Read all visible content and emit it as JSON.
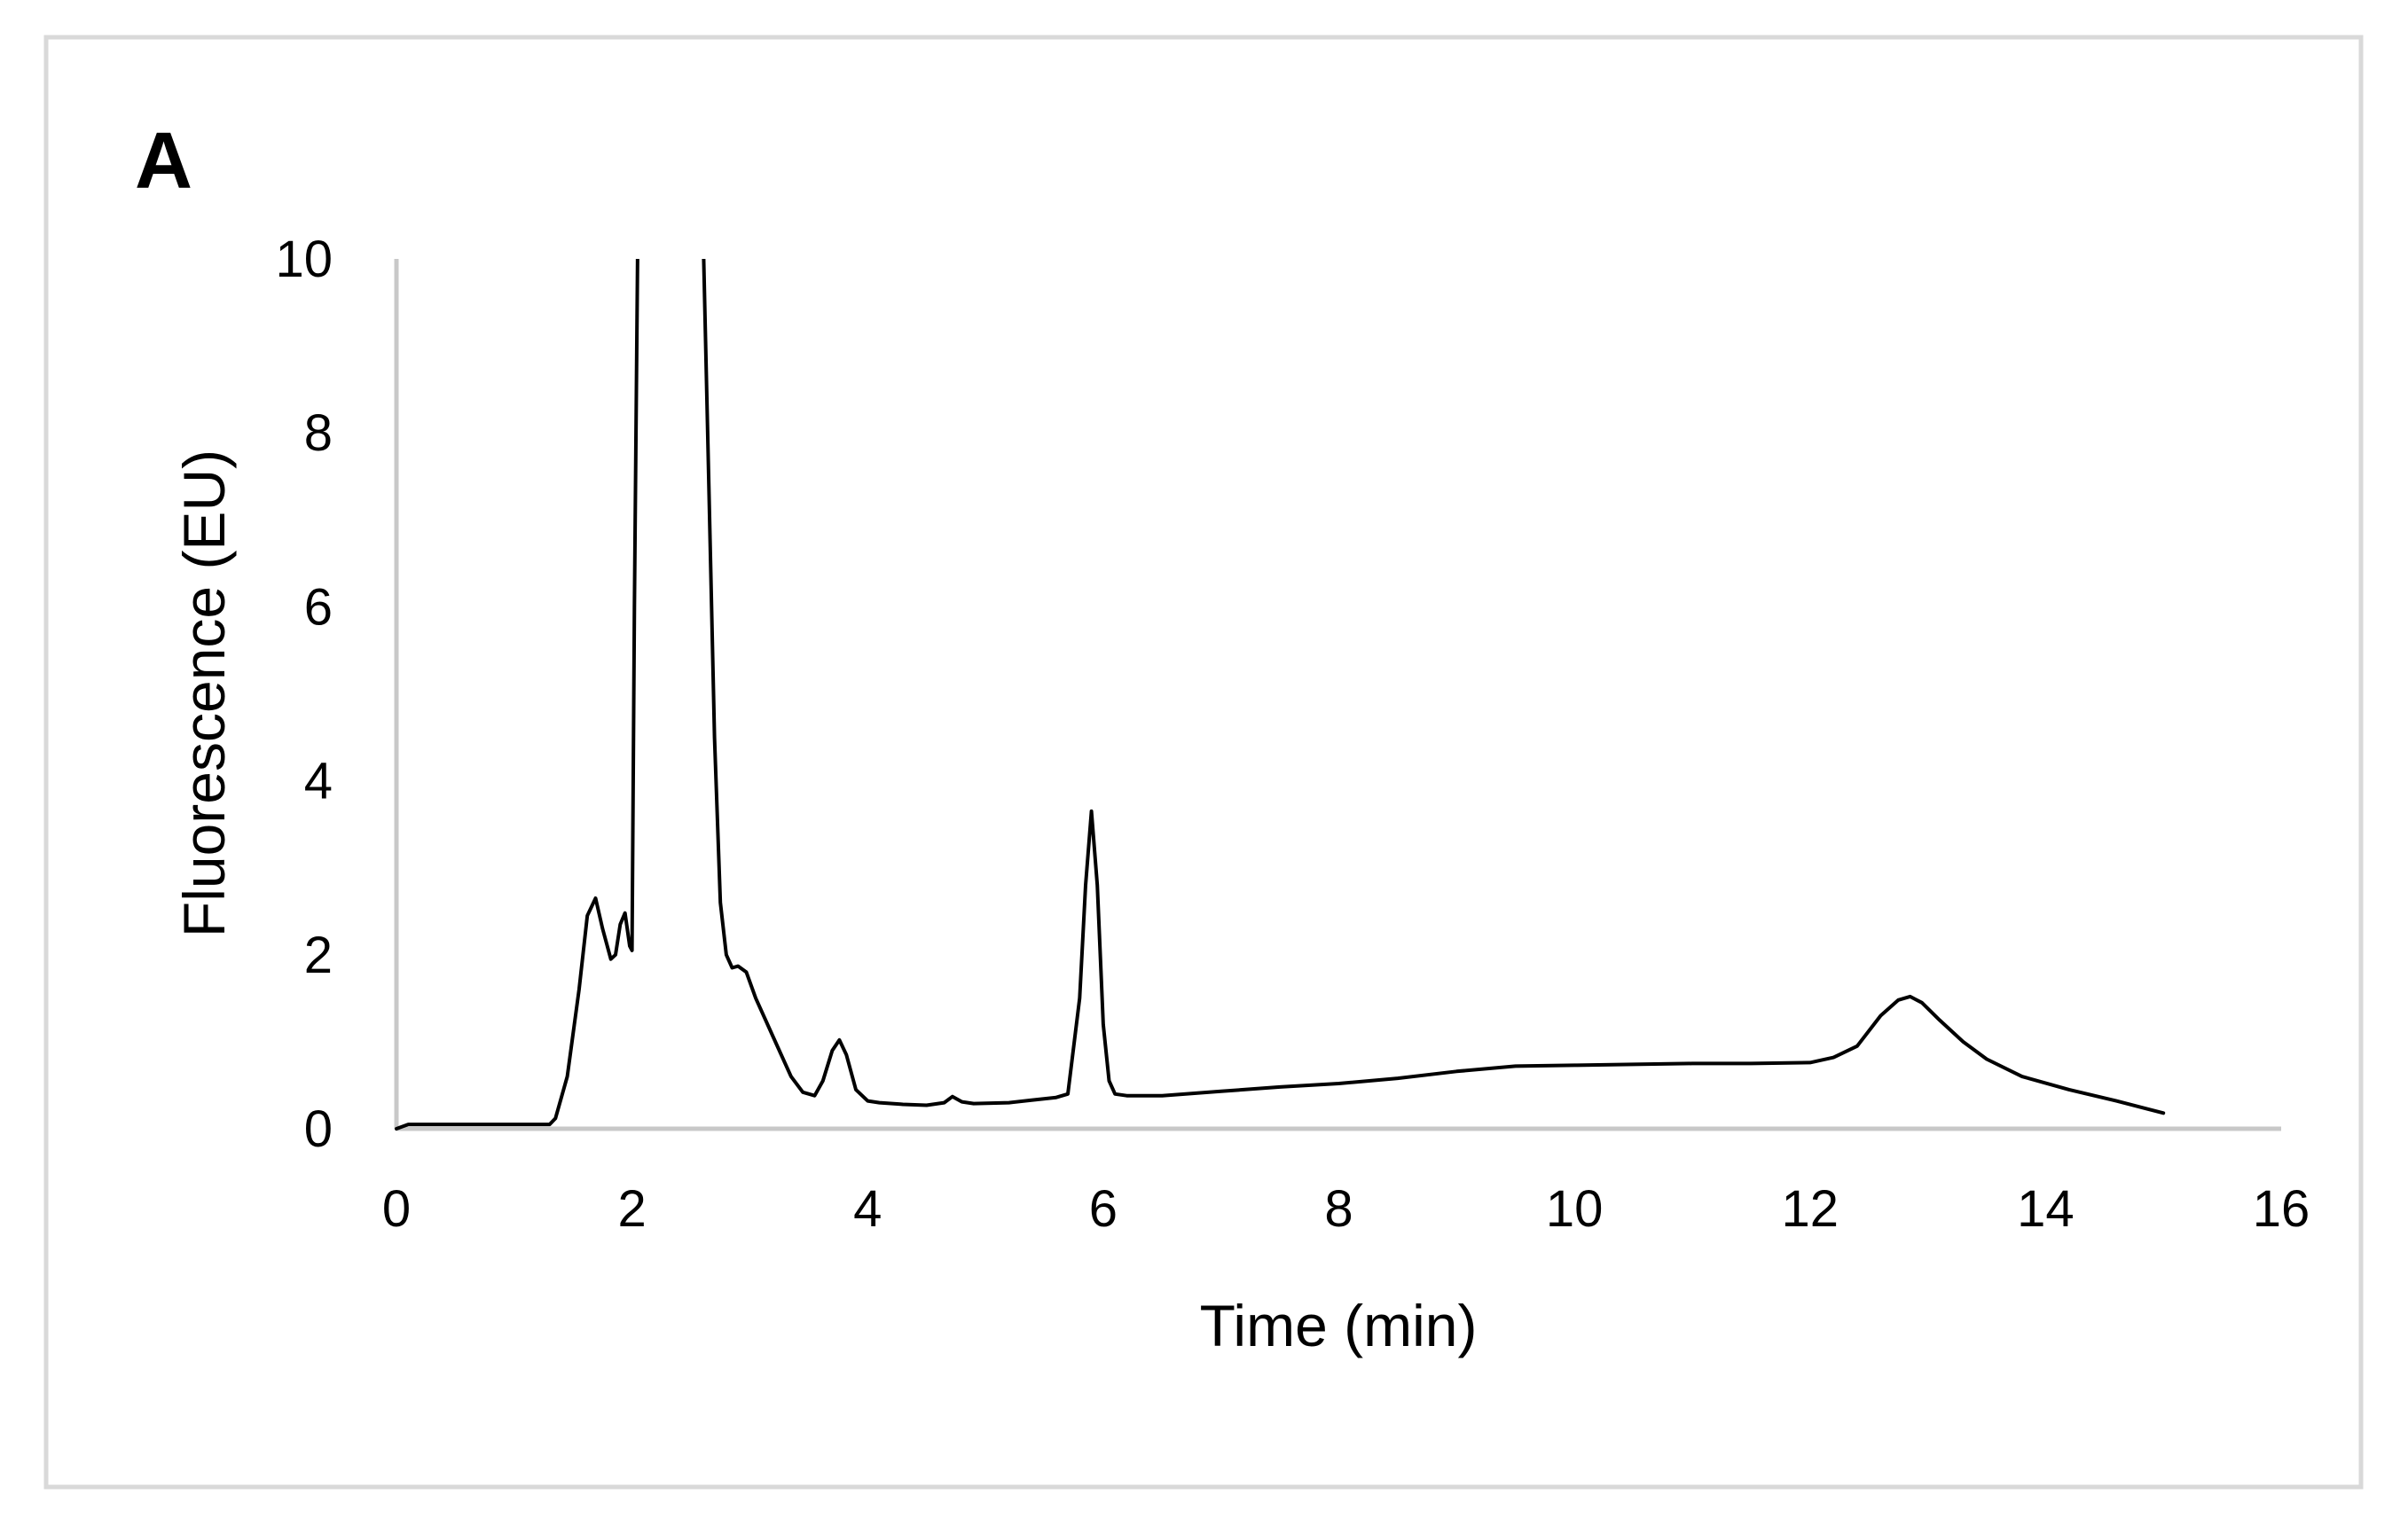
{
  "panel_label": "A",
  "chart_data": {
    "type": "line",
    "title": "",
    "xlabel": "Time (min)",
    "ylabel": "Fluorescence (EU)",
    "xlim": [
      0,
      16
    ],
    "ylim": [
      0,
      10
    ],
    "x_ticks": [
      0,
      2,
      4,
      6,
      8,
      10,
      12,
      14,
      16
    ],
    "y_ticks": [
      0,
      2,
      4,
      6,
      8,
      10
    ],
    "grid": false,
    "legend": "none",
    "line_color": "#000000",
    "axis_color": "#c8c8c8",
    "frame_color": "#d9d9d9",
    "series": [
      {
        "x": [
          0.0,
          0.1,
          0.5,
          1.0,
          1.3,
          1.35,
          1.45,
          1.55,
          1.62,
          1.69,
          1.75,
          1.82,
          1.86,
          1.9,
          1.94,
          1.98,
          2.0,
          2.02,
          2.05,
          2.08,
          2.6,
          2.65,
          2.7,
          2.75,
          2.8,
          2.85,
          2.9,
          2.97,
          3.05,
          3.2,
          3.35,
          3.45,
          3.55,
          3.62,
          3.7,
          3.76,
          3.82,
          3.9,
          4.0,
          4.1,
          4.3,
          4.5,
          4.65,
          4.72,
          4.8,
          4.9,
          5.2,
          5.4,
          5.6,
          5.7,
          5.8,
          5.85,
          5.9,
          5.95,
          6.0,
          6.05,
          6.1,
          6.2,
          6.3,
          6.5,
          7.0,
          7.5,
          8.0,
          8.5,
          9.0,
          9.5,
          10.0,
          10.5,
          11.0,
          11.5,
          12.0,
          12.2,
          12.4,
          12.6,
          12.75,
          12.85,
          12.95,
          13.1,
          13.3,
          13.5,
          13.8,
          14.2,
          14.6,
          15.0
        ],
        "y": [
          0.0,
          0.05,
          0.05,
          0.05,
          0.05,
          0.12,
          0.6,
          1.6,
          2.45,
          2.65,
          2.3,
          1.95,
          2.0,
          2.35,
          2.48,
          2.1,
          2.05,
          6.0,
          10.5,
          10.5,
          10.5,
          7.5,
          4.5,
          2.6,
          2.0,
          1.85,
          1.87,
          1.8,
          1.5,
          1.05,
          0.6,
          0.42,
          0.38,
          0.55,
          0.9,
          1.02,
          0.85,
          0.45,
          0.32,
          0.3,
          0.28,
          0.27,
          0.3,
          0.37,
          0.31,
          0.29,
          0.3,
          0.33,
          0.36,
          0.4,
          1.5,
          2.8,
          3.65,
          2.8,
          1.2,
          0.55,
          0.4,
          0.38,
          0.38,
          0.38,
          0.43,
          0.48,
          0.52,
          0.58,
          0.66,
          0.72,
          0.73,
          0.74,
          0.75,
          0.75,
          0.76,
          0.82,
          0.95,
          1.3,
          1.48,
          1.52,
          1.45,
          1.25,
          1.0,
          0.8,
          0.6,
          0.45,
          0.32,
          0.18
        ]
      }
    ]
  }
}
